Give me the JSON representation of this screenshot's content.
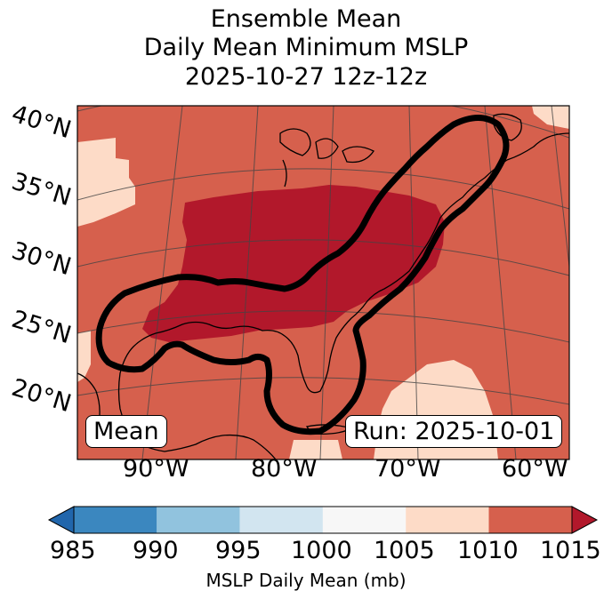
{
  "title": {
    "line1": "Ensemble Mean",
    "line2": "Daily Mean Minimum MSLP",
    "line3": "2025-10-27 12z-12z"
  },
  "latitude_labels": [
    "40°N",
    "35°N",
    "30°N",
    "25°N",
    "20°N"
  ],
  "longitude_labels": [
    "90°W",
    "80°W",
    "70°W",
    "60°W"
  ],
  "annotations": {
    "left_box": "Mean",
    "right_box": "Run: 2025-10-01"
  },
  "colorbar": {
    "label": "MSLP Daily Mean (mb)",
    "ticks": [
      "985",
      "990",
      "995",
      "1000",
      "1005",
      "1010",
      "1015"
    ],
    "colors": [
      "#3b87bf",
      "#91c3de",
      "#d2e5f0",
      "#f7f7f7",
      "#fddbc7",
      "#d6604d",
      "#b2182b",
      "#2166ac"
    ],
    "extend": "both"
  },
  "map_colors": {
    "very_high": "#b2182b",
    "high": "#d6604d",
    "mid_high": "#fddbc7",
    "contour": "#000000"
  }
}
